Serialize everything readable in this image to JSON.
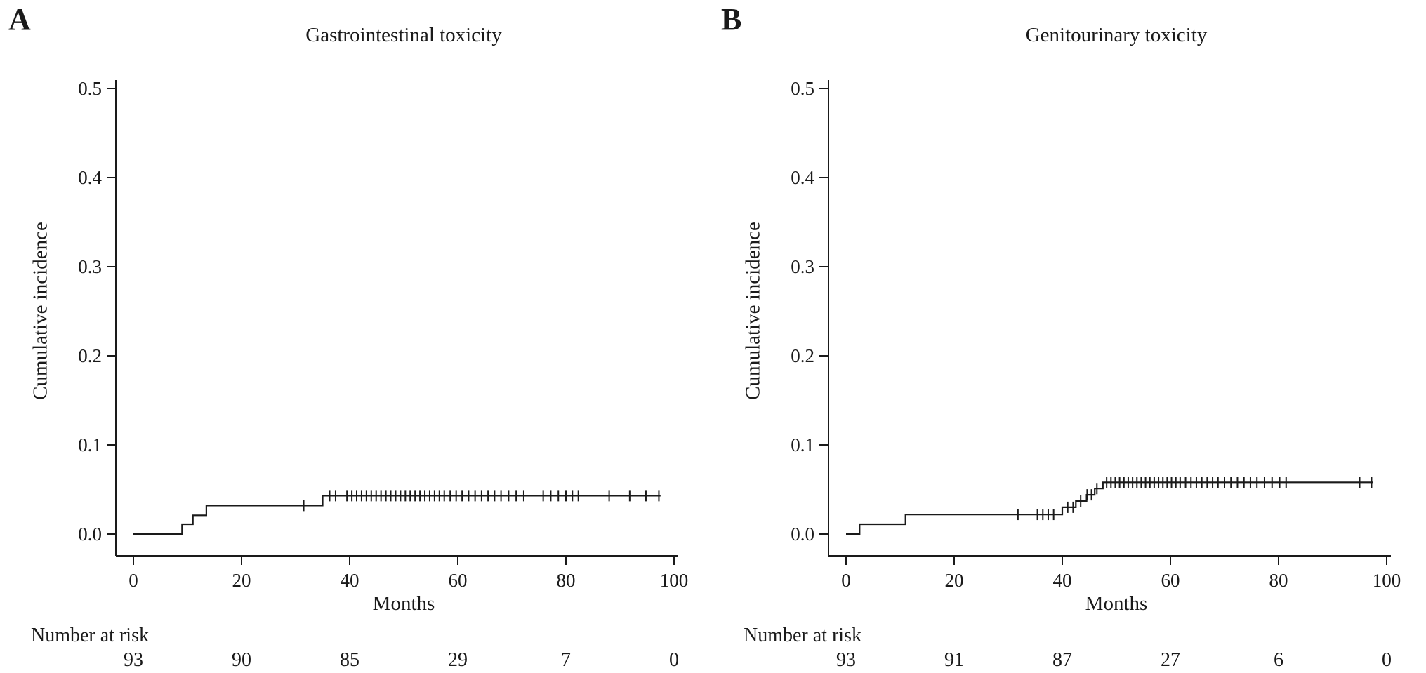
{
  "colors": {
    "curve": "#1a1a1a",
    "axis": "#1a1a1a",
    "text": "#1a1a1a",
    "background": "#ffffff"
  },
  "chart_data": [
    {
      "type": "line",
      "subtype": "cumulative-incidence-step-curve",
      "panel_label": "A",
      "title": "Gastrointestinal toxicity",
      "xlabel": "Months",
      "ylabel": "Cumulative incidence",
      "xlim": [
        0,
        100
      ],
      "ylim": [
        0,
        0.5
      ],
      "xticks": [
        "0",
        "20",
        "40",
        "60",
        "80",
        "100"
      ],
      "yticks": [
        "0.0",
        "0.1",
        "0.2",
        "0.3",
        "0.4",
        "0.5"
      ],
      "grid": false,
      "legend": "none",
      "step_points": [
        [
          0,
          0
        ],
        [
          9,
          0
        ],
        [
          9,
          0.011
        ],
        [
          11,
          0.011
        ],
        [
          11,
          0.021
        ],
        [
          13.5,
          0.021
        ],
        [
          13.5,
          0.032
        ],
        [
          35,
          0.032
        ],
        [
          35,
          0.043
        ],
        [
          97.5,
          0.043
        ]
      ],
      "censor_marks_x": [
        31.5,
        36.3,
        37.4,
        39.5,
        40.4,
        41.3,
        42.2,
        43.1,
        44,
        44.9,
        45.8,
        46.7,
        47.6,
        48.5,
        49.4,
        50.3,
        51.2,
        52.1,
        53,
        53.9,
        54.8,
        55.7,
        56.6,
        57.5,
        58.6,
        59.7,
        60.8,
        62,
        63.2,
        64.4,
        65.6,
        66.8,
        68,
        69.4,
        70.8,
        72.2,
        75.8,
        77.2,
        78.6,
        80,
        81.2,
        82.3,
        88,
        91.8,
        94.8,
        97.2
      ],
      "number_at_risk_label": "Number at risk",
      "number_at_risk_x": [
        0,
        20,
        40,
        60,
        80,
        100
      ],
      "number_at_risk": [
        93,
        90,
        85,
        29,
        7,
        0
      ]
    },
    {
      "type": "line",
      "subtype": "cumulative-incidence-step-curve",
      "panel_label": "B",
      "title": "Genitourinary toxicity",
      "xlabel": "Months",
      "ylabel": "Cumulative incidence",
      "xlim": [
        0,
        100
      ],
      "ylim": [
        0,
        0.5
      ],
      "xticks": [
        "0",
        "20",
        "40",
        "60",
        "80",
        "100"
      ],
      "yticks": [
        "0.0",
        "0.1",
        "0.2",
        "0.3",
        "0.4",
        "0.5"
      ],
      "grid": false,
      "legend": "none",
      "step_points": [
        [
          0,
          0
        ],
        [
          2.5,
          0
        ],
        [
          2.5,
          0.011
        ],
        [
          11,
          0.011
        ],
        [
          11,
          0.022
        ],
        [
          40,
          0.022
        ],
        [
          40,
          0.03
        ],
        [
          42.5,
          0.03
        ],
        [
          42.5,
          0.037
        ],
        [
          44.5,
          0.037
        ],
        [
          44.5,
          0.044
        ],
        [
          46,
          0.044
        ],
        [
          46,
          0.051
        ],
        [
          47.5,
          0.051
        ],
        [
          47.5,
          0.058
        ],
        [
          97.5,
          0.058
        ]
      ],
      "censor_marks_x": [
        31.8,
        35.4,
        36.4,
        37.4,
        38.4,
        41,
        42,
        43.4,
        44.6,
        45.4,
        46.4,
        48.2,
        49,
        49.8,
        50.6,
        51.4,
        52.2,
        53,
        53.8,
        54.6,
        55.4,
        56.2,
        57,
        57.8,
        58.6,
        59.4,
        60.2,
        61,
        61.8,
        62.8,
        63.8,
        64.8,
        65.8,
        66.8,
        67.8,
        68.8,
        70,
        71.2,
        72.4,
        73.6,
        74.8,
        76,
        77.4,
        78.8,
        80.2,
        81.4,
        95,
        97.2
      ],
      "number_at_risk_label": "Number at risk",
      "number_at_risk_x": [
        0,
        20,
        40,
        60,
        80,
        100
      ],
      "number_at_risk": [
        93,
        91,
        87,
        27,
        6,
        0
      ]
    }
  ]
}
